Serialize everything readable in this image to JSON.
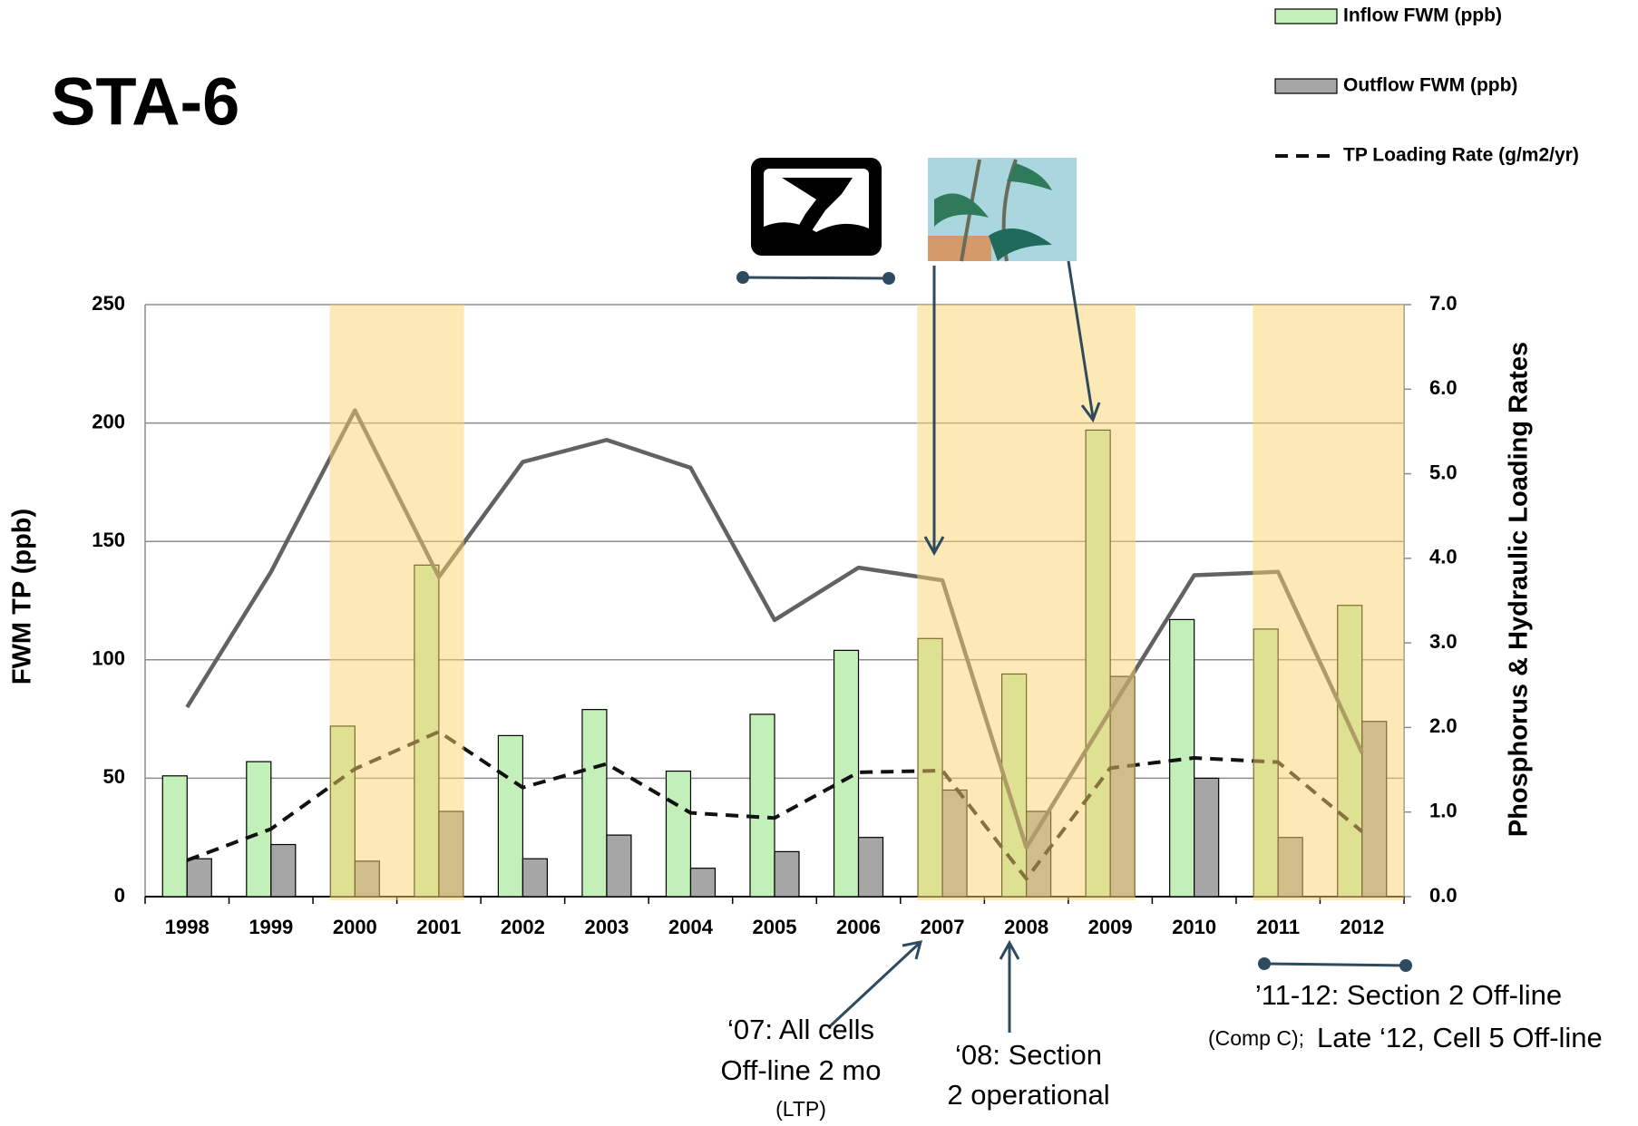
{
  "chart_data": {
    "type": "bar",
    "title": "STA-6",
    "ylabel": "FWM TP (ppb)",
    "y2label": "Phosphorus & Hydraulic Loading Rates",
    "categories": [
      "1998",
      "1999",
      "2000",
      "2001",
      "2002",
      "2003",
      "2004",
      "2005",
      "2006",
      "2007",
      "2008",
      "2009",
      "2010",
      "2011",
      "2012"
    ],
    "series": [
      {
        "name": "Inflow FWM (ppb)",
        "type": "bar",
        "color": "#c3efb9",
        "values": [
          51,
          57,
          72,
          140,
          68,
          79,
          53,
          77,
          104,
          109,
          94,
          197,
          117,
          113,
          123
        ]
      },
      {
        "name": "Outflow FWM (ppb)",
        "type": "bar",
        "color": "#a6a6a6",
        "values": [
          16,
          22,
          15,
          36,
          16,
          26,
          12,
          19,
          25,
          45,
          36,
          93,
          50,
          25,
          74
        ]
      },
      {
        "name": "TP Loading Rate (g/m2/yr)",
        "type": "line",
        "line_style": "dashed",
        "axis": "y2",
        "color": "#111111",
        "values": [
          0.43,
          0.8,
          1.51,
          1.95,
          1.29,
          1.57,
          0.99,
          0.93,
          1.47,
          1.49,
          0.21,
          1.52,
          1.64,
          1.59,
          0.77
        ]
      },
      {
        "type": "line",
        "line_style": "solid",
        "axis": "y2",
        "color": "#626262",
        "values": [
          2.24,
          3.84,
          5.75,
          3.78,
          5.14,
          5.4,
          5.07,
          3.27,
          3.89,
          3.74,
          0.58,
          2.2,
          3.8,
          3.84,
          1.7
        ]
      }
    ],
    "ylim": [
      0,
      250
    ],
    "yticks": [
      0,
      50,
      100,
      150,
      200,
      250
    ],
    "y2lim": [
      0,
      7
    ],
    "y2ticks": [
      {
        "value": 0,
        "label": "0.0"
      },
      {
        "value": 1,
        "label": "1.0"
      },
      {
        "value": 2,
        "label": "2.0"
      },
      {
        "value": 3,
        "label": "3.0"
      },
      {
        "value": 4,
        "label": "4.0"
      },
      {
        "value": 5,
        "label": "5.0"
      },
      {
        "value": 6,
        "label": "6.0"
      },
      {
        "value": 7,
        "label": "7.0"
      }
    ],
    "grid": true,
    "legend": "top-right",
    "highlight_categories": [
      "2000",
      "2001",
      "2007",
      "2008",
      "2009",
      "2011",
      "2012"
    ],
    "highlight_color": "#fbd36b",
    "annotations": [
      {
        "lines": [
          "‘07: All cells",
          "Off-line 2 mo",
          "(LTP)"
        ]
      },
      {
        "lines": [
          "‘08: Section",
          "2 operational"
        ]
      },
      {
        "lines": [
          "’11-12: Section 2 Off-line",
          "(Comp C);",
          "Late ‘12, Cell 5 Off-line"
        ]
      }
    ]
  }
}
